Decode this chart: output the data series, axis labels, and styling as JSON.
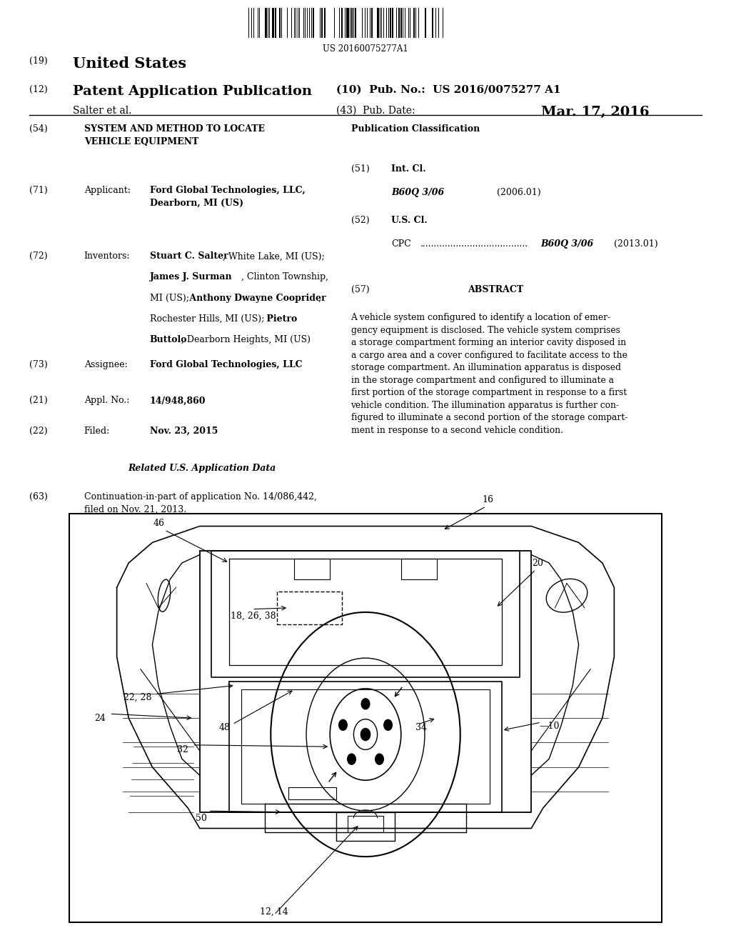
{
  "background_color": "#ffffff",
  "page_width": 10.24,
  "page_height": 13.2,
  "barcode_text": "US 20160075277A1",
  "line19": "(19)",
  "text19": "United States",
  "line12": "(12)",
  "text12": "Patent Application Publication",
  "text10": "(10)  Pub. No.:  US 2016/0075277 A1",
  "author_line": "Salter et al.",
  "text43": "(43)  Pub. Date:",
  "pub_date": "Mar. 17, 2016",
  "field54_num": "(54)",
  "field54_title": "SYSTEM AND METHOD TO LOCATE\nVEHICLE EQUIPMENT",
  "field71_num": "(71)",
  "field71_label": "Applicant:",
  "field71_text": "Ford Global Technologies, LLC,\nDearborn, MI (US)",
  "field72_num": "(72)",
  "field72_label": "Inventors:",
  "field73_num": "(73)",
  "field73_label": "Assignee:",
  "field73_text": "Ford Global Technologies, LLC",
  "field21_num": "(21)",
  "field21_label": "Appl. No.:",
  "field21_text": "14/948,860",
  "field22_num": "(22)",
  "field22_label": "Filed:",
  "field22_text": "Nov. 23, 2015",
  "related_header": "Related U.S. Application Data",
  "field63_num": "(63)",
  "field63_text": "Continuation-in-part of application No. 14/086,442,\nfiled on Nov. 21, 2013.",
  "pub_class_header": "Publication Classification",
  "field51_num": "(51)",
  "field51_label": "Int. Cl.",
  "field51_class": "B60Q 3/06",
  "field51_year": "(2006.01)",
  "field52_num": "(52)",
  "field52_label": "U.S. Cl.",
  "field52_cpc": "CPC",
  "field52_dots": ".......................................",
  "field52_class": "B60Q 3/06",
  "field52_year": "(2013.01)",
  "field57_num": "(57)",
  "field57_label": "ABSTRACT",
  "field57_text": "A vehicle system configured to identify a location of emer-\ngency equipment is disclosed. The vehicle system comprises\na storage compartment forming an interior cavity disposed in\na cargo area and a cover configured to facilitate access to the\nstorage compartment. An illumination apparatus is disposed\nin the storage compartment and configured to illuminate a\nfirst portion of the storage compartment in response to a first\nvehicle condition. The illumination apparatus is further con-\nfigured to illuminate a second portion of the storage compart-\nment in response to a second vehicle condition."
}
